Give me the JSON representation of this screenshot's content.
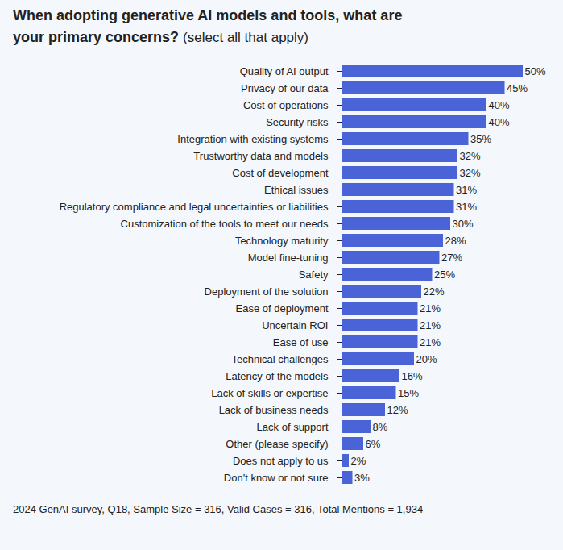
{
  "chart_data": {
    "type": "bar",
    "title": "When adopting generative AI models and tools, what are your primary concerns?",
    "subtitle": "(select all that apply)",
    "caption": "2024 GenAI survey, Q18, Sample Size = 316, Valid Cases = 316, Total Mentions = 1,934",
    "orientation": "horizontal",
    "categories": [
      "Quality of AI output",
      "Privacy of our data",
      "Cost of operations",
      "Security risks",
      "Integration with existing systems",
      "Trustworthy data and models",
      "Cost of development",
      "Ethical issues",
      "Regulatory compliance and legal uncertainties or liabilities",
      "Customization of the tools to meet our needs",
      "Technology maturity",
      "Model fine-tuning",
      "Safety",
      "Deployment of the solution",
      "Ease of deployment",
      "Uncertain ROI",
      "Ease of use",
      "Technical challenges",
      "Latency of the models",
      "Lack of skills or expertise",
      "Lack of business needs",
      "Lack of support",
      "Other (please specify)",
      "Does not apply to us",
      "Don't know or not sure"
    ],
    "values": [
      50,
      45,
      40,
      40,
      35,
      32,
      32,
      31,
      31,
      30,
      28,
      27,
      25,
      22,
      21,
      21,
      21,
      20,
      16,
      15,
      12,
      8,
      6,
      2,
      3
    ],
    "value_labels": [
      "50%",
      "45%",
      "40%",
      "40%",
      "35%",
      "32%",
      "32%",
      "31%",
      "31%",
      "30%",
      "28%",
      "27%",
      "25%",
      "22%",
      "21%",
      "21%",
      "21%",
      "20%",
      "16%",
      "15%",
      "12%",
      "8%",
      "6%",
      "2%",
      "3%"
    ],
    "color": "#4a64d8",
    "xlim": [
      0,
      50
    ],
    "xticks": [],
    "grid": false,
    "data_labels": true,
    "tick_labels": "y"
  }
}
